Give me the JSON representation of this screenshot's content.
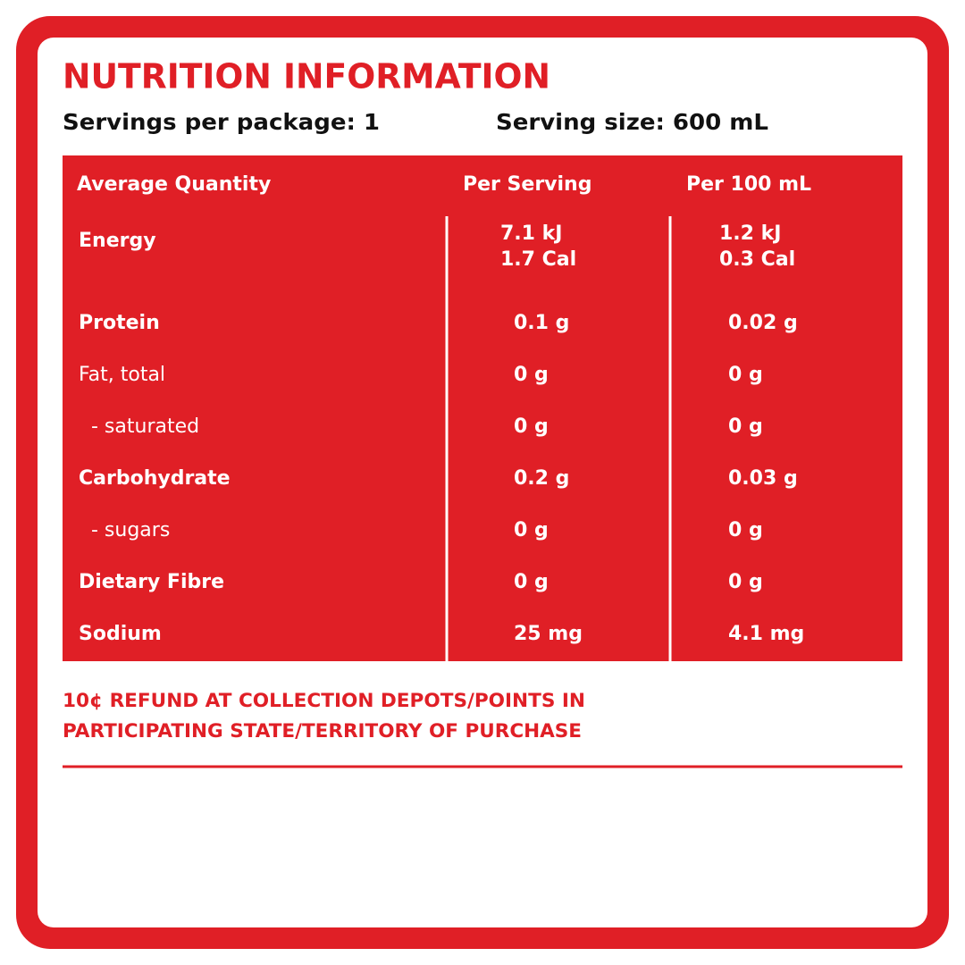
{
  "header": {
    "title": "NUTRITION INFORMATION",
    "servings": "Servings per package: 1",
    "serving_size": "Serving size: 600 mL"
  },
  "table": {
    "headers": [
      "Average Quantity",
      "Per Serving",
      "Per 100 mL"
    ],
    "rows": [
      [
        "Energy",
        [
          "7.1 kJ",
          "1.7 Cal"
        ],
        [
          "1.2 kJ",
          "0.3 Cal"
        ]
      ],
      [
        "Protein",
        "0.1 g",
        "0.02 g"
      ],
      [
        "Fat, total",
        "0 g",
        "0 g"
      ],
      [
        "- saturated",
        "0 g",
        "0 g"
      ],
      [
        "Carbohydrate",
        "0.2 g",
        "0.03 g"
      ],
      [
        "- sugars",
        "0 g",
        "0 g"
      ],
      [
        "Dietary Fibre",
        "0 g",
        "0 g"
      ],
      [
        "Sodium",
        "25 mg",
        "4.1 mg"
      ]
    ]
  },
  "footer": {
    "lines": [
      "10¢ REFUND AT COLLECTION DEPOTS/POINTS IN",
      "PARTICIPATING STATE/TERRITORY OF PURCHASE"
    ]
  }
}
